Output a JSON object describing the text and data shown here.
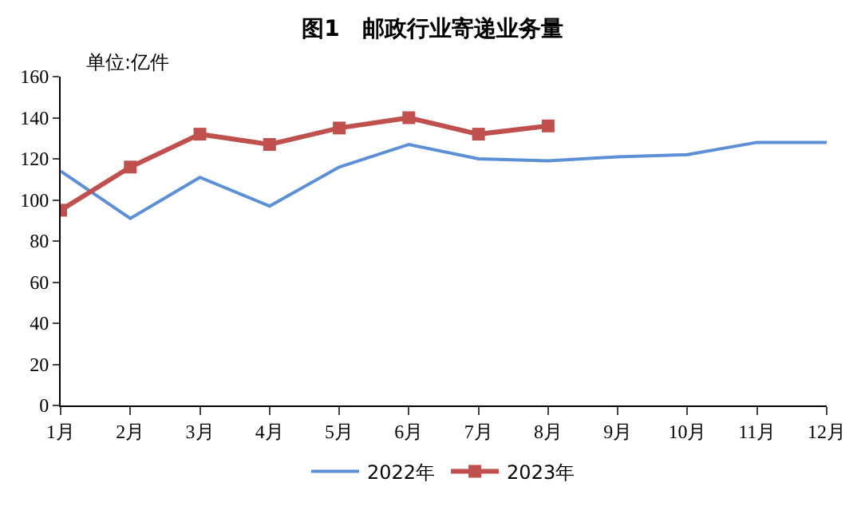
{
  "chart_data": {
    "type": "line",
    "title": "图1　邮政行业寄递业务量",
    "annotations": [
      "单位:亿件"
    ],
    "categories": [
      "1月",
      "2月",
      "3月",
      "4月",
      "5月",
      "6月",
      "7月",
      "8月",
      "9月",
      "10月",
      "11月",
      "12月"
    ],
    "series": [
      {
        "name": "2022年",
        "color": "#5b8fd6",
        "marker": "none",
        "values": [
          114,
          91,
          111,
          97,
          116,
          127,
          120,
          119,
          121,
          122,
          128,
          128
        ]
      },
      {
        "name": "2023年",
        "color": "#c0504d",
        "marker": "square",
        "values": [
          95,
          116,
          132,
          127,
          135,
          140,
          132,
          136,
          null,
          null,
          null,
          null
        ]
      }
    ],
    "ylim": [
      0,
      160
    ],
    "yticks": [
      0,
      20,
      40,
      60,
      80,
      100,
      120,
      140,
      160
    ],
    "grid": false,
    "legend": "bottom"
  }
}
